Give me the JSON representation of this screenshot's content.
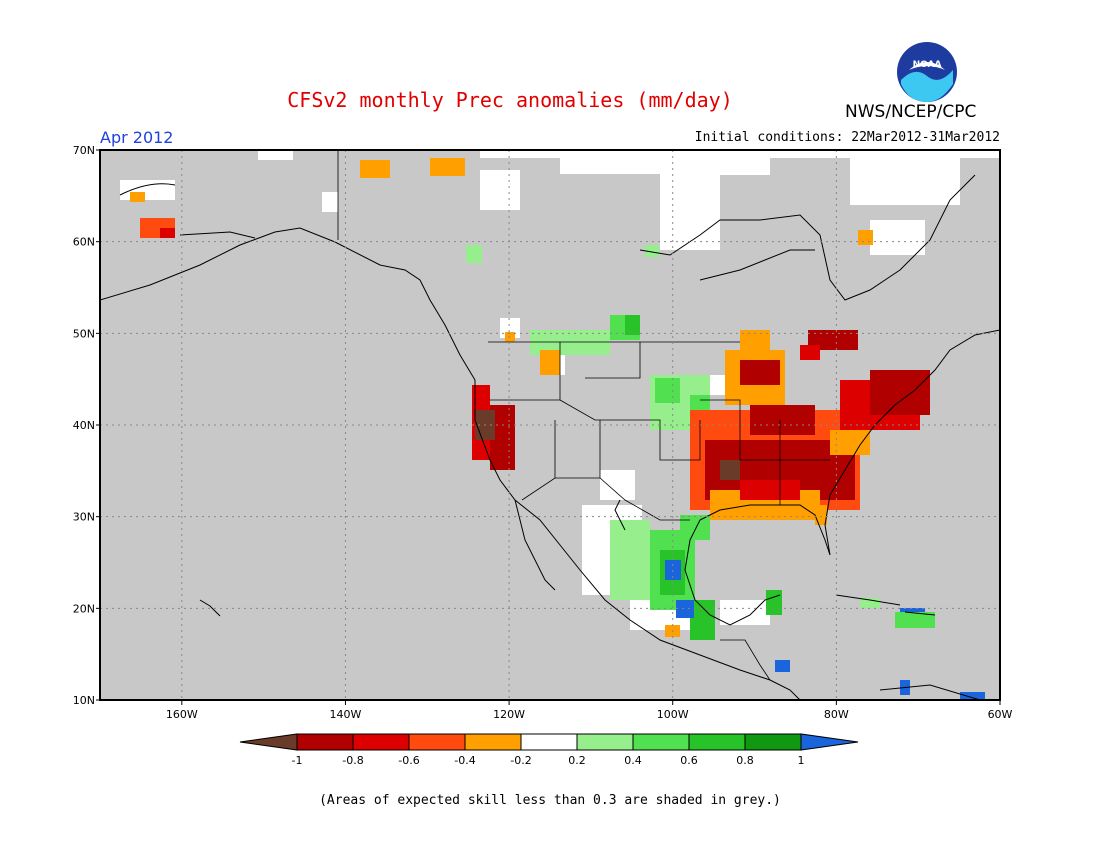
{
  "header": {
    "title": "CFSv2 monthly Prec anomalies (mm/day)",
    "agency": "NWS/NCEP/CPC",
    "logo_text": "NOAA",
    "month": "Apr 2012",
    "initial_conditions": "Initial conditions: 22Mar2012-31Mar2012"
  },
  "footnote": "(Areas of expected skill less than 0.3 are shaded in grey.)",
  "map": {
    "lat_range": [
      10,
      70
    ],
    "lon_range": [
      -170,
      -60
    ],
    "lat_labels": [
      "70N",
      "60N",
      "50N",
      "40N",
      "30N",
      "20N",
      "10N"
    ],
    "lat_values": [
      70,
      60,
      50,
      40,
      30,
      20,
      10
    ],
    "lon_labels": [
      "160W",
      "140W",
      "120W",
      "100W",
      "80W",
      "60W"
    ],
    "lon_values": [
      -160,
      -140,
      -120,
      -100,
      -80,
      -60
    ],
    "grid": "dotted",
    "mask_color": "#c8c8c8"
  },
  "colorbar": {
    "tick_labels": [
      "-1",
      "-0.8",
      "-0.6",
      "-0.4",
      "-0.2",
      "0.2",
      "0.4",
      "0.6",
      "0.8",
      "1"
    ],
    "colors": [
      "#6b3b2a",
      "#b00000",
      "#dc0000",
      "#ff4a10",
      "#ffa000",
      "#ffffff",
      "#96ee8c",
      "#50e050",
      "#28c328",
      "#109910",
      "#1a64dc"
    ]
  }
}
